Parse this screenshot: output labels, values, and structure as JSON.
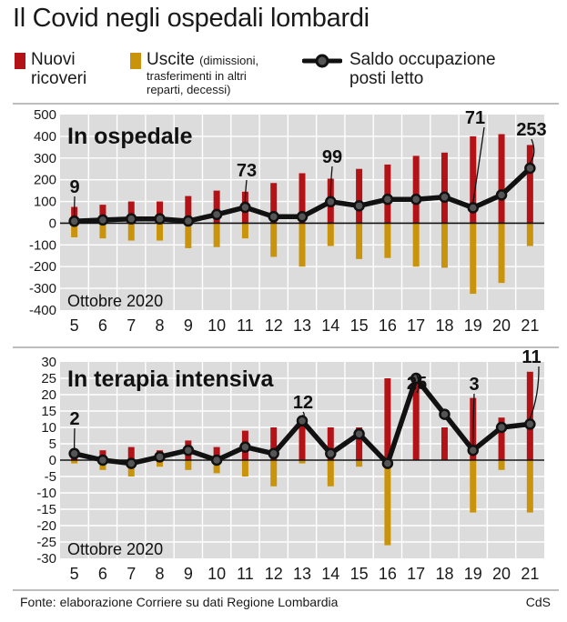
{
  "headline": "Il Covid negli ospedali lombardi",
  "legend": {
    "nuovi_line1": "Nuovi",
    "nuovi_line2": "ricoveri",
    "uscite": "Uscite",
    "uscite_note1": "(dimissioni,",
    "uscite_note2": "trasferimenti in altri",
    "uscite_note3": "reparti, decessi)",
    "saldo_line1": "Saldo occupazione",
    "saldo_line2": "posti letto"
  },
  "colors": {
    "nuovi": "#b31217",
    "uscite": "#c9940c",
    "saldo": "#111111",
    "panel_bg": "#dcdcdc",
    "grid": "#ffffff"
  },
  "chart_data": [
    {
      "type": "bar",
      "title": "In ospedale",
      "period_label": "Ottobre 2020",
      "categories": [
        "5",
        "6",
        "7",
        "8",
        "9",
        "10",
        "11",
        "12",
        "13",
        "14",
        "15",
        "16",
        "17",
        "18",
        "19",
        "20",
        "21"
      ],
      "ylim": [
        -400,
        500
      ],
      "yticks": [
        "500",
        "400",
        "300",
        "200",
        "100",
        "0",
        "-100",
        "-200",
        "-300",
        "-400"
      ],
      "grid": true,
      "series": [
        {
          "name": "Nuovi ricoveri",
          "kind": "bar",
          "values": [
            75,
            85,
            100,
            100,
            125,
            150,
            145,
            185,
            230,
            205,
            250,
            270,
            310,
            325,
            400,
            410,
            360
          ]
        },
        {
          "name": "Uscite",
          "kind": "bar",
          "values": [
            -65,
            -70,
            -80,
            -80,
            -115,
            -110,
            -70,
            -155,
            -200,
            -105,
            -165,
            -160,
            -200,
            -205,
            -325,
            -275,
            -105
          ]
        },
        {
          "name": "Saldo occupazione posti letto",
          "kind": "line",
          "values": [
            9,
            15,
            20,
            20,
            10,
            40,
            73,
            30,
            30,
            99,
            80,
            110,
            110,
            120,
            71,
            130,
            253
          ]
        }
      ],
      "annotations": [
        {
          "label": "9",
          "index": 0
        },
        {
          "label": "73",
          "index": 6
        },
        {
          "label": "99",
          "index": 9
        },
        {
          "label": "71",
          "index": 14
        },
        {
          "label": "253",
          "index": 16
        }
      ]
    },
    {
      "type": "bar",
      "title": "In terapia intensiva",
      "period_label": "Ottobre 2020",
      "categories": [
        "5",
        "6",
        "7",
        "8",
        "9",
        "10",
        "11",
        "12",
        "13",
        "14",
        "15",
        "16",
        "17",
        "18",
        "19",
        "20",
        "21"
      ],
      "ylim": [
        -30,
        30
      ],
      "yticks": [
        "30",
        "25",
        "20",
        "15",
        "10",
        "5",
        "0",
        "-5",
        "-10",
        "-15",
        "-20",
        "-25",
        "-30"
      ],
      "grid": true,
      "series": [
        {
          "name": "Nuovi ricoveri",
          "kind": "bar",
          "values": [
            2,
            3,
            4,
            3,
            6,
            4,
            9,
            10,
            13,
            10,
            10,
            25,
            25,
            10,
            19,
            13,
            27
          ]
        },
        {
          "name": "Uscite",
          "kind": "bar",
          "values": [
            -1,
            -3,
            -5,
            -2,
            -3,
            -4,
            -5,
            -8,
            -1,
            -8,
            -2,
            -26,
            0,
            0,
            -16,
            -3,
            -16
          ]
        },
        {
          "name": "Saldo occupazione posti letto",
          "kind": "line",
          "values": [
            2,
            0,
            -1,
            1,
            3,
            0,
            4,
            2,
            12,
            2,
            8,
            -1,
            25,
            14,
            3,
            10,
            11
          ]
        }
      ],
      "annotations": [
        {
          "label": "2",
          "index": 0
        },
        {
          "label": "12",
          "index": 8
        },
        {
          "label": "25",
          "index": 12
        },
        {
          "label": "3",
          "index": 14
        },
        {
          "label": "11",
          "index": 16
        }
      ]
    }
  ],
  "footer": {
    "source": "Fonte: elaborazione Corriere su dati Regione Lombardia",
    "credit": "CdS"
  }
}
